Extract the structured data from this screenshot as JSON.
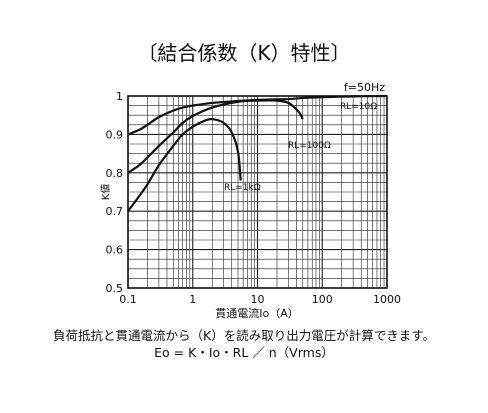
{
  "chart_data": {
    "type": "line",
    "title": "〔結合係数（K）特性〕",
    "xlabel": "貫通電流Io（A）",
    "ylabel": "K値",
    "xscale": "log",
    "xlim": [
      0.1,
      1000
    ],
    "ylim": [
      0.5,
      1.0
    ],
    "xticks": [
      {
        "value": 0.1,
        "label": "0.1"
      },
      {
        "value": 1,
        "label": "1"
      },
      {
        "value": 10,
        "label": "10"
      },
      {
        "value": 100,
        "label": "100"
      },
      {
        "value": 1000,
        "label": "1000"
      }
    ],
    "yticks": [
      {
        "value": 0.5,
        "label": "0.5"
      },
      {
        "value": 0.6,
        "label": "0.6"
      },
      {
        "value": 0.7,
        "label": "0.7"
      },
      {
        "value": 0.8,
        "label": "0.8"
      },
      {
        "value": 0.9,
        "label": "0.9"
      },
      {
        "value": 1.0,
        "label": "1"
      }
    ],
    "grid": true,
    "annotations": [
      {
        "text": "f=50Hz"
      }
    ],
    "series": [
      {
        "name": "RL=10Ω",
        "x": [
          0.1,
          0.15,
          0.2,
          0.3,
          0.5,
          0.7,
          1,
          2,
          5,
          10,
          30,
          50,
          100,
          300,
          1000
        ],
        "y": [
          0.9,
          0.912,
          0.925,
          0.945,
          0.962,
          0.97,
          0.975,
          0.982,
          0.987,
          0.99,
          0.992,
          0.995,
          0.997,
          0.999,
          1.0
        ]
      },
      {
        "name": "RL=100Ω",
        "x": [
          0.1,
          0.15,
          0.2,
          0.3,
          0.5,
          0.7,
          1,
          2,
          5,
          10,
          20,
          30,
          40,
          45,
          50
        ],
        "y": [
          0.8,
          0.82,
          0.84,
          0.87,
          0.905,
          0.93,
          0.948,
          0.97,
          0.985,
          0.988,
          0.988,
          0.982,
          0.965,
          0.955,
          0.94
        ]
      },
      {
        "name": "RL=1kΩ",
        "x": [
          0.1,
          0.15,
          0.2,
          0.3,
          0.5,
          0.7,
          1,
          1.5,
          2,
          3,
          4,
          5,
          5.5
        ],
        "y": [
          0.7,
          0.74,
          0.77,
          0.82,
          0.87,
          0.9,
          0.92,
          0.935,
          0.94,
          0.93,
          0.905,
          0.855,
          0.78
        ]
      }
    ]
  },
  "footer": {
    "line1": "負荷抵抗と貫通電流から（K）を読み取り出力電圧が計算できます。",
    "line2": "Eo = K・Io・RL ／ n（Vrms）"
  }
}
